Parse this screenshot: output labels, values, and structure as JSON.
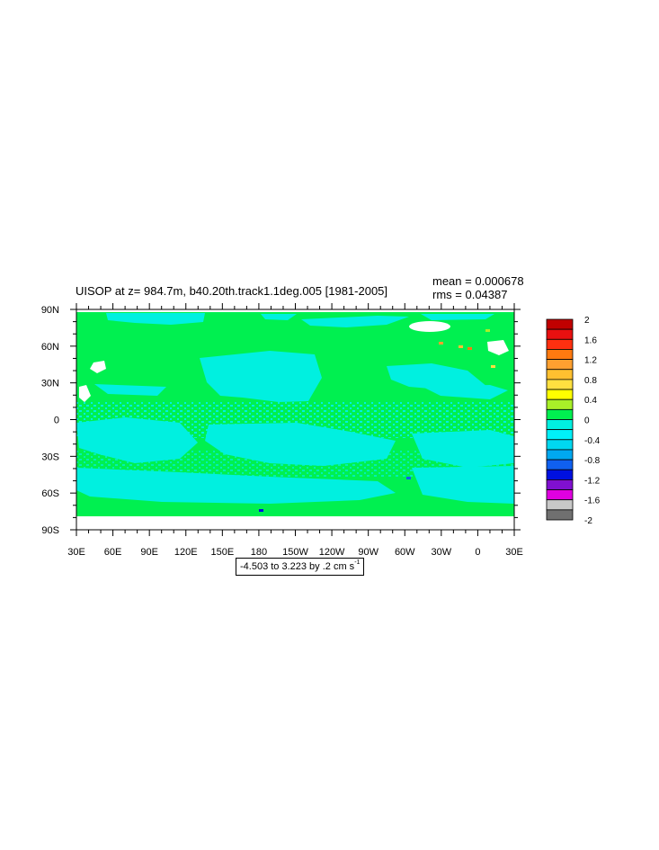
{
  "title": "UISOP at z= 984.7m, b40.20th.track1.1deg.005 [1981-2005]",
  "stats": {
    "mean": "mean = 0.000678",
    "rms": "rms = 0.04387"
  },
  "range_label": {
    "text": "-4.503 to 3.223 by .2 cm s",
    "unit_exponent": "-1"
  },
  "colors": {
    "ocean_positive_small": "#00f050",
    "ocean_negative_small": "#00f0e0",
    "land_mask": "#ffffff"
  },
  "chart_data": {
    "type": "heatmap",
    "map_projection": "cylindrical-equidistant",
    "x_range": [
      "30E",
      "30E"
    ],
    "y_range": [
      -90,
      90
    ],
    "x_tick_labels": [
      "30E",
      "60E",
      "90E",
      "120E",
      "150E",
      "180",
      "150W",
      "120W",
      "90W",
      "60W",
      "30W",
      "0",
      "30E"
    ],
    "y_tick_labels": [
      "90N",
      "60N",
      "30N",
      "0",
      "30S",
      "60S",
      "90S"
    ],
    "colorbar": {
      "levels": [
        "2",
        "1.6",
        "1.2",
        "0.8",
        "0.4",
        "0",
        "-0.4",
        "-0.8",
        "-1.2",
        "-1.6",
        "-2"
      ],
      "colors": [
        "#c00000",
        "#e81010",
        "#ff3010",
        "#ff7a10",
        "#ffa030",
        "#ffc030",
        "#ffe040",
        "#ffff00",
        "#a8f028",
        "#00f050",
        "#00f0e0",
        "#00f0f8",
        "#00d8f0",
        "#00a8f0",
        "#1060f0",
        "#0010e0",
        "#8010d0",
        "#e000e0",
        "#c8c8c8",
        "#707070"
      ]
    }
  }
}
